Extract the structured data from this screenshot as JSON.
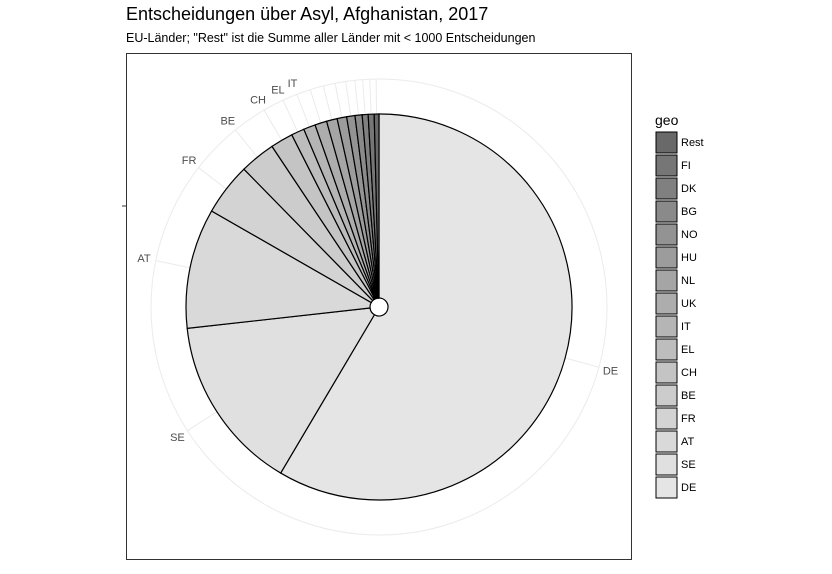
{
  "chart_data": {
    "type": "pie",
    "title": "Entscheidungen über Asyl, Afghanistan, 2017",
    "subtitle": "EU-Länder; \"Rest\" ist die Summe aller Länder mit < 1000 Entscheidungen",
    "legend_title": "geo",
    "legend_position": "right",
    "slices": [
      {
        "label": "DE",
        "value": 58.8,
        "color": "#e5e5e5",
        "show_label": true
      },
      {
        "label": "SE",
        "value": 14.8,
        "color": "#e0e0e0",
        "show_label": true
      },
      {
        "label": "AT",
        "value": 10.1,
        "color": "#d9d9d9",
        "show_label": true
      },
      {
        "label": "FR",
        "value": 4.4,
        "color": "#d3d3d3",
        "show_label": true
      },
      {
        "label": "BE",
        "value": 3.0,
        "color": "#cccccc",
        "show_label": true
      },
      {
        "label": "CH",
        "value": 1.9,
        "color": "#c4c4c4",
        "show_label": true
      },
      {
        "label": "EL",
        "value": 1.1,
        "color": "#bdbdbd",
        "show_label": true
      },
      {
        "label": "IT",
        "value": 1.0,
        "color": "#b5b5b5",
        "show_label": true
      },
      {
        "label": "UK",
        "value": 1.0,
        "color": "#adadad",
        "show_label": false
      },
      {
        "label": "NL",
        "value": 0.9,
        "color": "#a5a5a5",
        "show_label": false
      },
      {
        "label": "HU",
        "value": 0.8,
        "color": "#9c9c9c",
        "show_label": false
      },
      {
        "label": "NO",
        "value": 0.7,
        "color": "#939393",
        "show_label": false
      },
      {
        "label": "BG",
        "value": 0.6,
        "color": "#8a8a8a",
        "show_label": false
      },
      {
        "label": "DK",
        "value": 0.5,
        "color": "#808080",
        "show_label": false
      },
      {
        "label": "FI",
        "value": 0.5,
        "color": "#767676",
        "show_label": false
      },
      {
        "label": "Rest",
        "value": 0.4,
        "color": "#696969",
        "show_label": false
      }
    ]
  }
}
